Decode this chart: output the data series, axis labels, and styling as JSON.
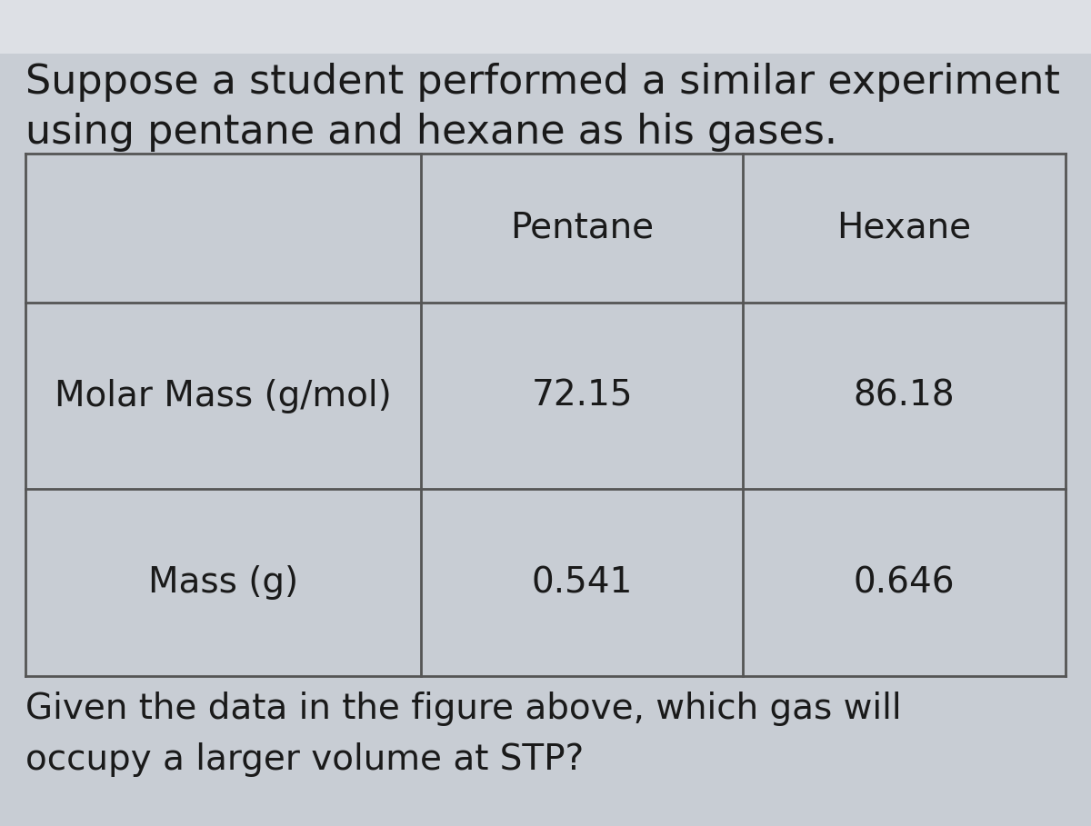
{
  "title_line1": "Suppose a student performed a similar experiment",
  "title_line2": "using pentane and hexane as his gases.",
  "footer_line1": "Given the data in the figure above, which gas will",
  "footer_line2": "occupy a larger volume at STP?",
  "col_headers": [
    "",
    "Pentane",
    "Hexane"
  ],
  "rows": [
    [
      "Molar Mass (g/mol)",
      "72.15",
      "86.18"
    ],
    [
      "Mass (g)",
      "0.541",
      "0.646"
    ]
  ],
  "bg_color": "#c8cdd4",
  "table_bg": "#c8cdd4",
  "text_color": "#1a1a1a",
  "title_fontsize": 32,
  "table_fontsize": 28,
  "footer_fontsize": 28,
  "top_bar_color": "#e8e8e8"
}
